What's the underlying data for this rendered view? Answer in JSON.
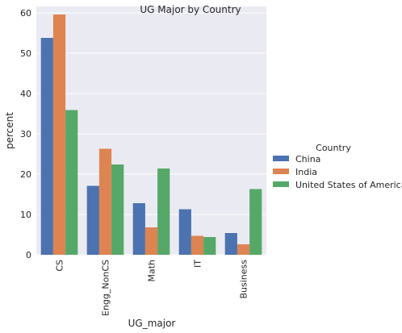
{
  "chart_data": {
    "type": "bar",
    "title": "UG Major by Country",
    "xlabel": "UG_major",
    "ylabel": "percent",
    "categories": [
      "CS",
      "Engg_NonCS",
      "Math",
      "IT",
      "Business"
    ],
    "series": [
      {
        "name": "China",
        "color": "#4c72b0",
        "values": [
          53.8,
          17.1,
          12.8,
          11.3,
          5.4
        ]
      },
      {
        "name": "India",
        "color": "#dd8452",
        "values": [
          59.6,
          26.3,
          6.8,
          4.7,
          2.6
        ]
      },
      {
        "name": "United States of America",
        "color": "#55a868",
        "values": [
          35.9,
          22.4,
          21.4,
          4.4,
          16.3
        ]
      }
    ],
    "ylim": [
      0,
      62
    ],
    "yticks": [
      0,
      10,
      20,
      30,
      40,
      50,
      60
    ],
    "grid": true,
    "background": "#eaeaf2",
    "legend": {
      "title": "Country",
      "placement": "right"
    }
  }
}
